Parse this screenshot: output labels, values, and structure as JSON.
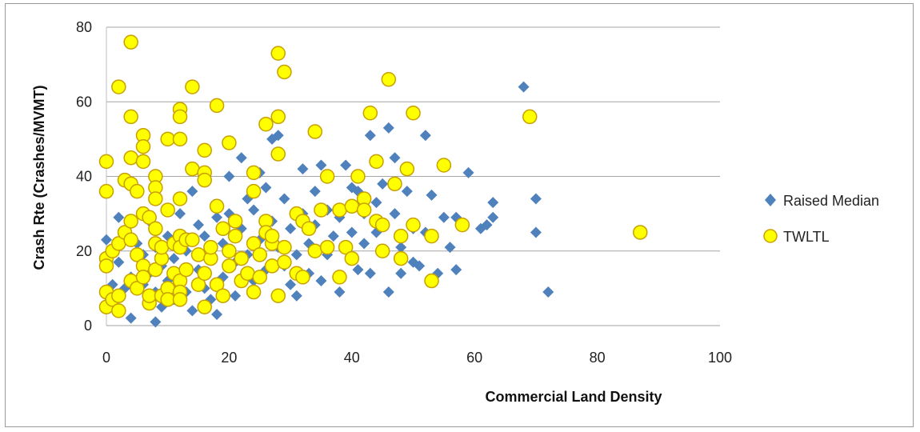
{
  "chart_data": {
    "type": "scatter",
    "title": "",
    "xlabel": "Commercial Land Density",
    "ylabel": "Crash Rte (Crashes/MVMT)",
    "xlim": [
      0,
      100
    ],
    "ylim": [
      0,
      80
    ],
    "xticks": [
      "0",
      "20",
      "40",
      "60",
      "80",
      "100"
    ],
    "yticks": [
      "0",
      "20",
      "40",
      "60",
      "80"
    ],
    "grid": "horizontal",
    "legend_position": "right",
    "series": [
      {
        "name": "Raised Median",
        "marker": "diamond",
        "color": "#4f81bd",
        "points": [
          [
            0,
            23
          ],
          [
            0,
            16
          ],
          [
            1,
            11
          ],
          [
            2,
            29
          ],
          [
            2,
            17
          ],
          [
            3,
            10
          ],
          [
            3,
            25
          ],
          [
            4,
            2
          ],
          [
            4,
            13
          ],
          [
            5,
            36
          ],
          [
            5,
            22
          ],
          [
            6,
            19
          ],
          [
            6,
            11
          ],
          [
            7,
            28
          ],
          [
            7,
            14
          ],
          [
            8,
            1
          ],
          [
            8,
            21
          ],
          [
            8,
            9
          ],
          [
            9,
            5
          ],
          [
            9,
            16
          ],
          [
            10,
            12
          ],
          [
            10,
            24
          ],
          [
            11,
            7
          ],
          [
            11,
            18
          ],
          [
            12,
            30
          ],
          [
            12,
            14
          ],
          [
            13,
            20
          ],
          [
            13,
            9
          ],
          [
            14,
            36
          ],
          [
            14,
            4
          ],
          [
            15,
            27
          ],
          [
            15,
            15
          ],
          [
            16,
            24
          ],
          [
            16,
            10
          ],
          [
            17,
            18
          ],
          [
            17,
            7
          ],
          [
            18,
            3
          ],
          [
            18,
            29
          ],
          [
            19,
            22
          ],
          [
            19,
            13
          ],
          [
            20,
            40
          ],
          [
            20,
            30
          ],
          [
            21,
            17
          ],
          [
            21,
            8
          ],
          [
            22,
            45
          ],
          [
            22,
            26
          ],
          [
            23,
            34
          ],
          [
            23,
            19
          ],
          [
            24,
            12
          ],
          [
            24,
            31
          ],
          [
            25,
            41
          ],
          [
            25,
            23
          ],
          [
            26,
            15
          ],
          [
            26,
            37
          ],
          [
            27,
            28
          ],
          [
            27,
            50
          ],
          [
            28,
            21
          ],
          [
            28,
            51
          ],
          [
            29,
            34
          ],
          [
            29,
            16
          ],
          [
            30,
            26
          ],
          [
            30,
            11
          ],
          [
            31,
            19
          ],
          [
            31,
            8
          ],
          [
            32,
            42
          ],
          [
            32,
            30
          ],
          [
            33,
            22
          ],
          [
            33,
            14
          ],
          [
            34,
            36
          ],
          [
            34,
            27
          ],
          [
            35,
            43
          ],
          [
            35,
            12
          ],
          [
            36,
            31
          ],
          [
            36,
            19
          ],
          [
            37,
            24
          ],
          [
            38,
            9
          ],
          [
            38,
            29
          ],
          [
            39,
            43
          ],
          [
            40,
            37
          ],
          [
            40,
            25
          ],
          [
            41,
            36
          ],
          [
            41,
            15
          ],
          [
            42,
            30
          ],
          [
            42,
            22
          ],
          [
            43,
            14
          ],
          [
            43,
            51
          ],
          [
            44,
            33
          ],
          [
            44,
            25
          ],
          [
            45,
            38
          ],
          [
            45,
            20
          ],
          [
            46,
            53
          ],
          [
            46,
            9
          ],
          [
            47,
            45
          ],
          [
            47,
            30
          ],
          [
            48,
            21
          ],
          [
            48,
            14
          ],
          [
            49,
            36
          ],
          [
            50,
            26
          ],
          [
            50,
            17
          ],
          [
            51,
            16
          ],
          [
            52,
            51
          ],
          [
            52,
            25
          ],
          [
            53,
            35
          ],
          [
            54,
            14
          ],
          [
            55,
            29
          ],
          [
            56,
            21
          ],
          [
            57,
            15
          ],
          [
            57,
            29
          ],
          [
            59,
            41
          ],
          [
            61,
            26
          ],
          [
            62,
            27
          ],
          [
            63,
            33
          ],
          [
            63,
            29
          ],
          [
            68,
            64
          ],
          [
            70,
            34
          ],
          [
            70,
            25
          ],
          [
            72,
            9
          ]
        ]
      },
      {
        "name": "TWLTL",
        "marker": "circle",
        "color": "#ffff00",
        "points": [
          [
            0,
            44
          ],
          [
            0,
            36
          ],
          [
            0,
            18
          ],
          [
            0,
            9
          ],
          [
            0,
            5
          ],
          [
            0,
            16
          ],
          [
            1,
            7
          ],
          [
            1,
            20
          ],
          [
            2,
            64
          ],
          [
            2,
            22
          ],
          [
            2,
            4
          ],
          [
            2,
            8
          ],
          [
            3,
            39
          ],
          [
            3,
            25
          ],
          [
            4,
            76
          ],
          [
            4,
            56
          ],
          [
            4,
            45
          ],
          [
            4,
            38
          ],
          [
            4,
            28
          ],
          [
            4,
            23
          ],
          [
            4,
            12
          ],
          [
            5,
            36
          ],
          [
            5,
            19
          ],
          [
            5,
            10
          ],
          [
            6,
            44
          ],
          [
            6,
            51
          ],
          [
            6,
            48
          ],
          [
            6,
            30
          ],
          [
            6,
            16
          ],
          [
            6,
            13
          ],
          [
            7,
            6
          ],
          [
            7,
            29
          ],
          [
            7,
            8
          ],
          [
            8,
            40
          ],
          [
            8,
            37
          ],
          [
            8,
            34
          ],
          [
            8,
            26
          ],
          [
            8,
            22
          ],
          [
            8,
            15
          ],
          [
            9,
            8
          ],
          [
            9,
            18
          ],
          [
            9,
            21
          ],
          [
            10,
            31
          ],
          [
            10,
            50
          ],
          [
            10,
            10
          ],
          [
            10,
            7
          ],
          [
            11,
            22
          ],
          [
            11,
            14
          ],
          [
            12,
            58
          ],
          [
            12,
            56
          ],
          [
            12,
            50
          ],
          [
            12,
            34
          ],
          [
            12,
            24
          ],
          [
            12,
            21
          ],
          [
            12,
            12
          ],
          [
            12,
            9
          ],
          [
            12,
            7
          ],
          [
            13,
            23
          ],
          [
            13,
            15
          ],
          [
            14,
            64
          ],
          [
            14,
            42
          ],
          [
            14,
            23
          ],
          [
            15,
            19
          ],
          [
            15,
            11
          ],
          [
            16,
            47
          ],
          [
            16,
            41
          ],
          [
            16,
            39
          ],
          [
            16,
            14
          ],
          [
            16,
            5
          ],
          [
            17,
            18
          ],
          [
            17,
            21
          ],
          [
            18,
            59
          ],
          [
            18,
            32
          ],
          [
            18,
            11
          ],
          [
            19,
            26
          ],
          [
            19,
            8
          ],
          [
            20,
            49
          ],
          [
            20,
            20
          ],
          [
            20,
            16
          ],
          [
            21,
            28
          ],
          [
            21,
            24
          ],
          [
            22,
            18
          ],
          [
            22,
            12
          ],
          [
            23,
            14
          ],
          [
            24,
            41
          ],
          [
            24,
            36
          ],
          [
            24,
            22
          ],
          [
            24,
            9
          ],
          [
            25,
            19
          ],
          [
            25,
            13
          ],
          [
            26,
            54
          ],
          [
            26,
            28
          ],
          [
            26,
            25
          ],
          [
            27,
            22
          ],
          [
            27,
            16
          ],
          [
            27,
            24
          ],
          [
            28,
            73
          ],
          [
            28,
            56
          ],
          [
            28,
            46
          ],
          [
            28,
            8
          ],
          [
            29,
            68
          ],
          [
            29,
            21
          ],
          [
            29,
            17
          ],
          [
            31,
            14
          ],
          [
            31,
            30
          ],
          [
            32,
            28
          ],
          [
            32,
            13
          ],
          [
            33,
            26
          ],
          [
            34,
            52
          ],
          [
            34,
            20
          ],
          [
            35,
            31
          ],
          [
            36,
            40
          ],
          [
            36,
            21
          ],
          [
            38,
            31
          ],
          [
            38,
            13
          ],
          [
            39,
            21
          ],
          [
            40,
            32
          ],
          [
            40,
            18
          ],
          [
            41,
            40
          ],
          [
            42,
            34
          ],
          [
            42,
            31
          ],
          [
            43,
            57
          ],
          [
            44,
            44
          ],
          [
            44,
            28
          ],
          [
            45,
            27
          ],
          [
            45,
            20
          ],
          [
            46,
            66
          ],
          [
            47,
            38
          ],
          [
            48,
            18
          ],
          [
            48,
            24
          ],
          [
            49,
            42
          ],
          [
            50,
            57
          ],
          [
            50,
            27
          ],
          [
            53,
            12
          ],
          [
            53,
            24
          ],
          [
            55,
            43
          ],
          [
            58,
            27
          ],
          [
            69,
            56
          ],
          [
            87,
            25
          ]
        ]
      }
    ]
  }
}
